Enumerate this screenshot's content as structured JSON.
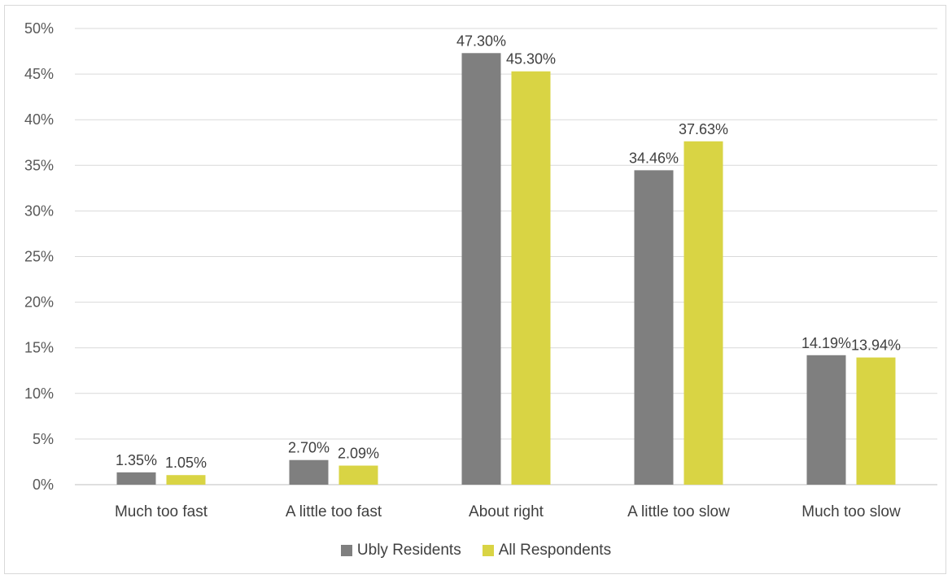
{
  "chart_data": {
    "type": "bar",
    "categories": [
      "Much too fast",
      "A little too fast",
      "About right",
      "A little too slow",
      "Much too slow"
    ],
    "series": [
      {
        "name": "Ubly Residents",
        "color": "#7f7f7f",
        "values": [
          1.35,
          2.7,
          47.3,
          34.46,
          14.19
        ],
        "labels": [
          "1.35%",
          "2.70%",
          "47.30%",
          "34.46%",
          "14.19%"
        ]
      },
      {
        "name": "All Respondents",
        "color": "#d9d444",
        "values": [
          1.05,
          2.09,
          45.3,
          37.63,
          13.94
        ],
        "labels": [
          "1.05%",
          "2.09%",
          "45.30%",
          "37.63%",
          "13.94%"
        ]
      }
    ],
    "y_ticks": [
      "0%",
      "5%",
      "10%",
      "15%",
      "20%",
      "25%",
      "30%",
      "35%",
      "40%",
      "45%",
      "50%"
    ],
    "ylim": [
      0,
      50
    ],
    "grid": true,
    "legend_position": "bottom"
  }
}
